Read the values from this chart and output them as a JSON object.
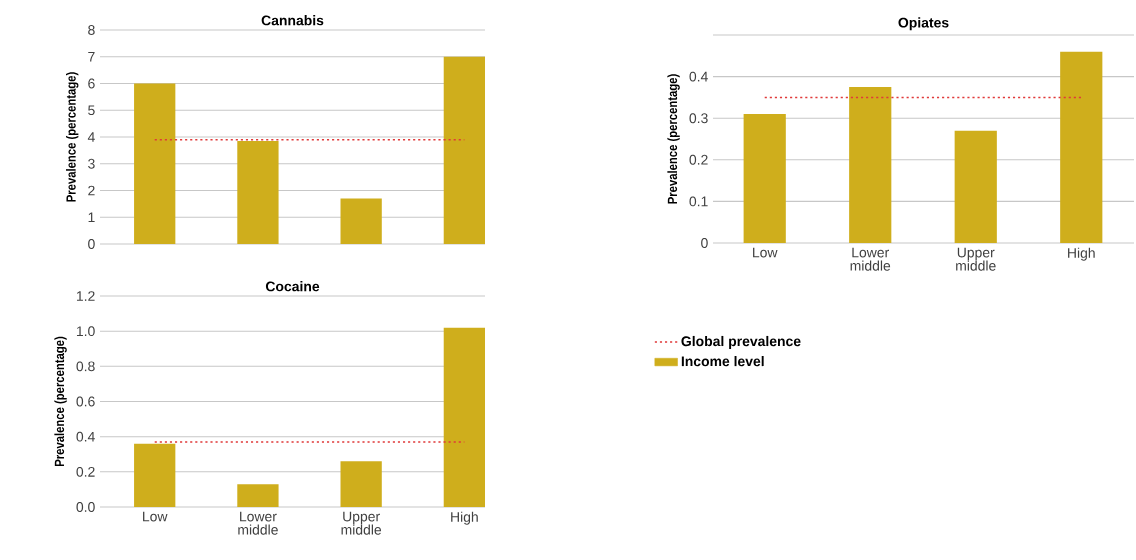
{
  "chart_data": [
    {
      "type": "bar",
      "title": "Cannabis",
      "ylabel": "Prevalence (percentage)",
      "categories": [
        null,
        null,
        null,
        null
      ],
      "series": [
        {
          "color": "#cfae1c",
          "values": [
            6.0,
            3.85,
            1.7,
            7.0
          ]
        }
      ],
      "ylim": [
        0,
        8
      ],
      "yticks": [
        0,
        1,
        2,
        3,
        4,
        5,
        6,
        7,
        8
      ],
      "grid": "y",
      "tick_labels": "y",
      "ref_lines": [
        {
          "axis": "y",
          "value": 3.9,
          "color": "#e03a3a",
          "line_style": "dotted"
        }
      ]
    },
    {
      "type": "bar",
      "title": "Opiates",
      "ylabel": "Prevalence (percentage)",
      "categories": [
        "Low",
        "Lower middle",
        "Upper middle",
        "High"
      ],
      "series": [
        {
          "name": "Income level",
          "color": "#cfae1c",
          "values": [
            0.31,
            0.375,
            0.27,
            0.46
          ]
        }
      ],
      "ylim": [
        0,
        0.5
      ],
      "yticks": [
        0,
        0.1,
        0.2,
        0.3,
        0.4,
        {
          "value": 0.5,
          "label": null
        }
      ],
      "grid": "y",
      "legend": "bottom",
      "ref_lines": [
        {
          "axis": "y",
          "value": 0.35,
          "label": "Global prevalence",
          "color": "#e03a3a",
          "line_style": "dotted"
        }
      ]
    },
    {
      "type": "bar",
      "title": "Cocaine",
      "ylabel": "Prevalence (percentage)",
      "categories": [
        "Low",
        "Lower middle",
        "Upper middle",
        "High"
      ],
      "series": [
        {
          "color": "#cfae1c",
          "values": [
            0.36,
            0.13,
            0.26,
            1.02
          ]
        }
      ],
      "ylim": [
        0,
        1.2
      ],
      "yticks": [
        {
          "value": 0,
          "label": "0.0"
        },
        0.2,
        0.4,
        0.6,
        0.8,
        {
          "value": 1,
          "label": "1.0"
        },
        1.2
      ],
      "grid": "y",
      "ref_lines": [
        {
          "axis": "y",
          "value": 0.37,
          "color": "#e03a3a",
          "line_style": "dotted"
        }
      ]
    }
  ]
}
